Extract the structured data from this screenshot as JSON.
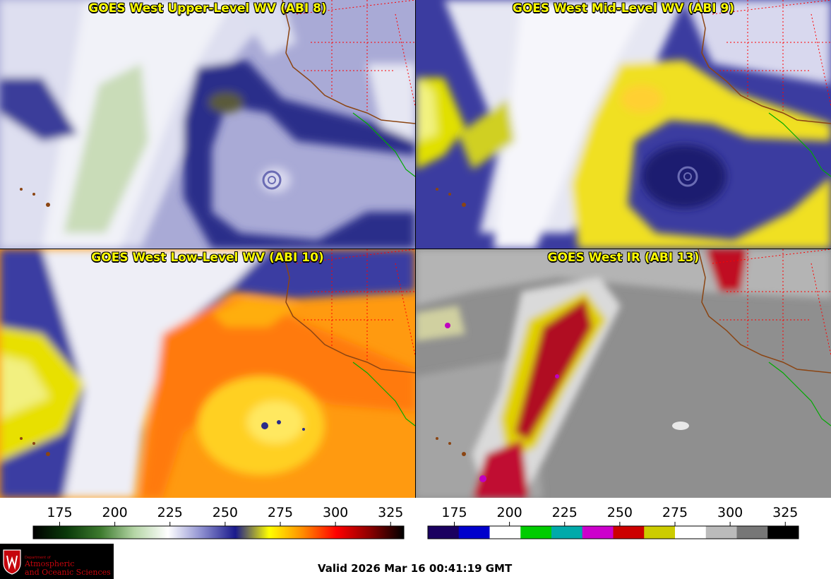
{
  "panels": [
    {
      "title": "GOES West Upper-Level WV (ABI 8)"
    },
    {
      "title": "GOES West Mid-Level WV (ABI 9)"
    },
    {
      "title": "GOES West Low-Level WV (ABI 10)"
    },
    {
      "title": "GOES West IR (ABI 13)"
    }
  ],
  "colorbar_wv": {
    "ticks": [
      "175",
      "200",
      "225",
      "250",
      "275",
      "300",
      "325"
    ],
    "tick_values": [
      175,
      200,
      225,
      250,
      275,
      300,
      325
    ],
    "range": [
      163,
      331
    ],
    "colors": [
      "#000000",
      "#0a3a0a",
      "#3d7a2e",
      "#b5d6a6",
      "#ffffff",
      "#8d8fd0",
      "#1a1a8c",
      "#ffff00",
      "#ff8c00",
      "#ff0000",
      "#8b0000",
      "#000000"
    ]
  },
  "colorbar_ir": {
    "ticks": [
      "175",
      "200",
      "225",
      "250",
      "275",
      "300",
      "325"
    ],
    "tick_values": [
      175,
      200,
      225,
      250,
      275,
      300,
      325
    ],
    "range": [
      163,
      331
    ],
    "colors": [
      "#1a0060",
      "#0000cc",
      "#ffffff",
      "#00cc00",
      "#00aaaa",
      "#cc00cc",
      "#cc0000",
      "#cccc00",
      "#ffffff",
      "#bbbbbb",
      "#777777",
      "#000000"
    ]
  },
  "logo": {
    "small": "Department of",
    "line1": "Atmospheric",
    "line2": "and Oceanic Sciences"
  },
  "valid_text": "Valid 2026 Mar 16 00:41:19 GMT"
}
